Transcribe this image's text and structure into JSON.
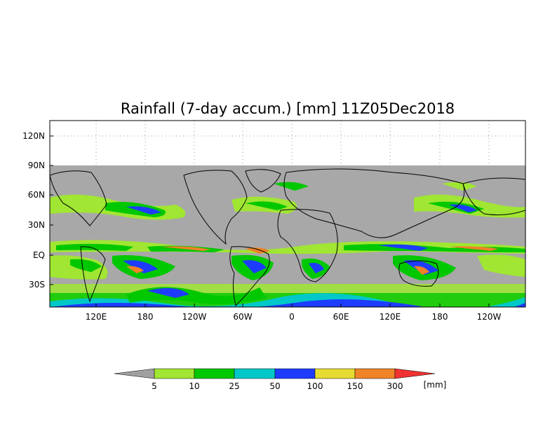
{
  "map": {
    "title": "Rainfall (7-day accum.) [mm] 11Z05Dec2018",
    "lat_labels": [
      "120N",
      "90N",
      "60N",
      "30N",
      "EQ",
      "30S"
    ],
    "lon_labels": [
      "120E",
      "180",
      "120W",
      "60W",
      "0",
      "60E",
      "120E",
      "180",
      "120W"
    ]
  },
  "legend": {
    "unit": "[mm]",
    "thresholds": [
      "5",
      "10",
      "25",
      "50",
      "100",
      "150",
      "300"
    ],
    "colors": {
      "below": "#a0a0a0",
      "c1": "#a0e632",
      "c2": "#00c800",
      "c3": "#00c8c8",
      "c4": "#1e3cff",
      "c5": "#e6dc32",
      "c6": "#f08228",
      "c7": "#f03232"
    }
  }
}
